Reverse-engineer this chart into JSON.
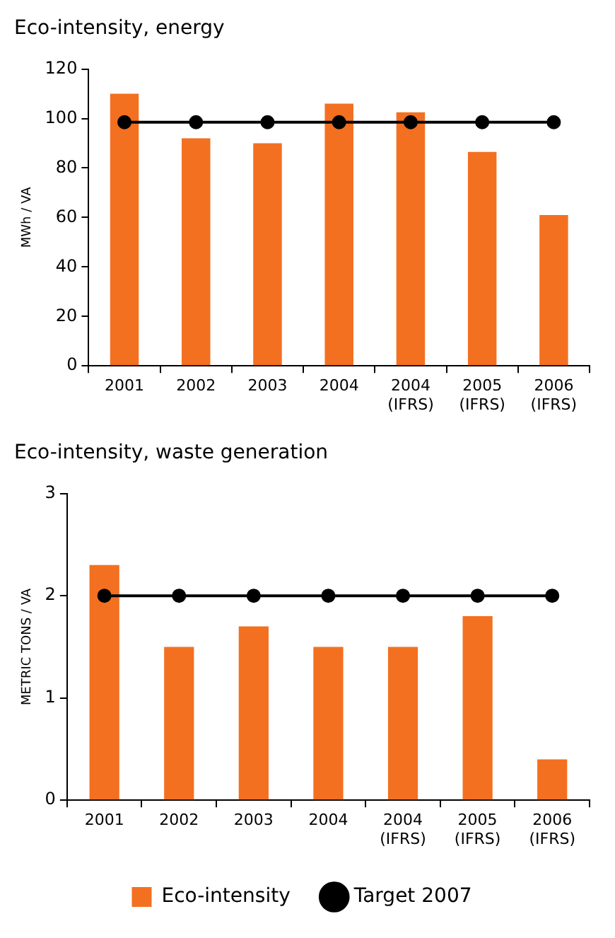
{
  "chart_data": [
    {
      "type": "bar",
      "title": "Eco-intensity, energy",
      "ylabel": "MWh / VA",
      "categories": [
        "2001",
        "2002",
        "2003",
        "2004",
        "2004 (IFRS)",
        "2005 (IFRS)",
        "2006 (IFRS)"
      ],
      "series": [
        {
          "color": "#f37021",
          "values": [
            110,
            92,
            90,
            106,
            102.5,
            86.5,
            61
          ]
        },
        {
          "type": "line",
          "color": "#000000",
          "values": [
            98.5,
            98.5,
            98.5,
            98.5,
            98.5,
            98.5,
            98.5
          ]
        }
      ],
      "ylim": [
        0,
        120
      ],
      "yticks": [
        0,
        20,
        40,
        60,
        80,
        100,
        120
      ],
      "grid": false,
      "legend": false,
      "marker": "circle",
      "line_style": "solid"
    },
    {
      "type": "bar",
      "title": "Eco-intensity, waste generation",
      "ylabel": "METRIC TONS / VA",
      "categories": [
        "2001",
        "2002",
        "2003",
        "2004",
        "2004 (IFRS)",
        "2005 (IFRS)",
        "2006 (IFRS)"
      ],
      "series": [
        {
          "name": "Eco-intensity",
          "color": "#f37021",
          "values": [
            2.3,
            1.5,
            1.7,
            1.5,
            1.5,
            1.8,
            0.4
          ]
        },
        {
          "type": "line",
          "name": "Target 2007",
          "color": "#000000",
          "values": [
            2,
            2,
            2,
            2,
            2,
            2,
            2
          ]
        }
      ],
      "ylim": [
        0,
        3
      ],
      "yticks": [
        0,
        1,
        2,
        3
      ],
      "grid": false,
      "legend": "bottom",
      "marker": "circle",
      "line_style": "solid"
    }
  ]
}
